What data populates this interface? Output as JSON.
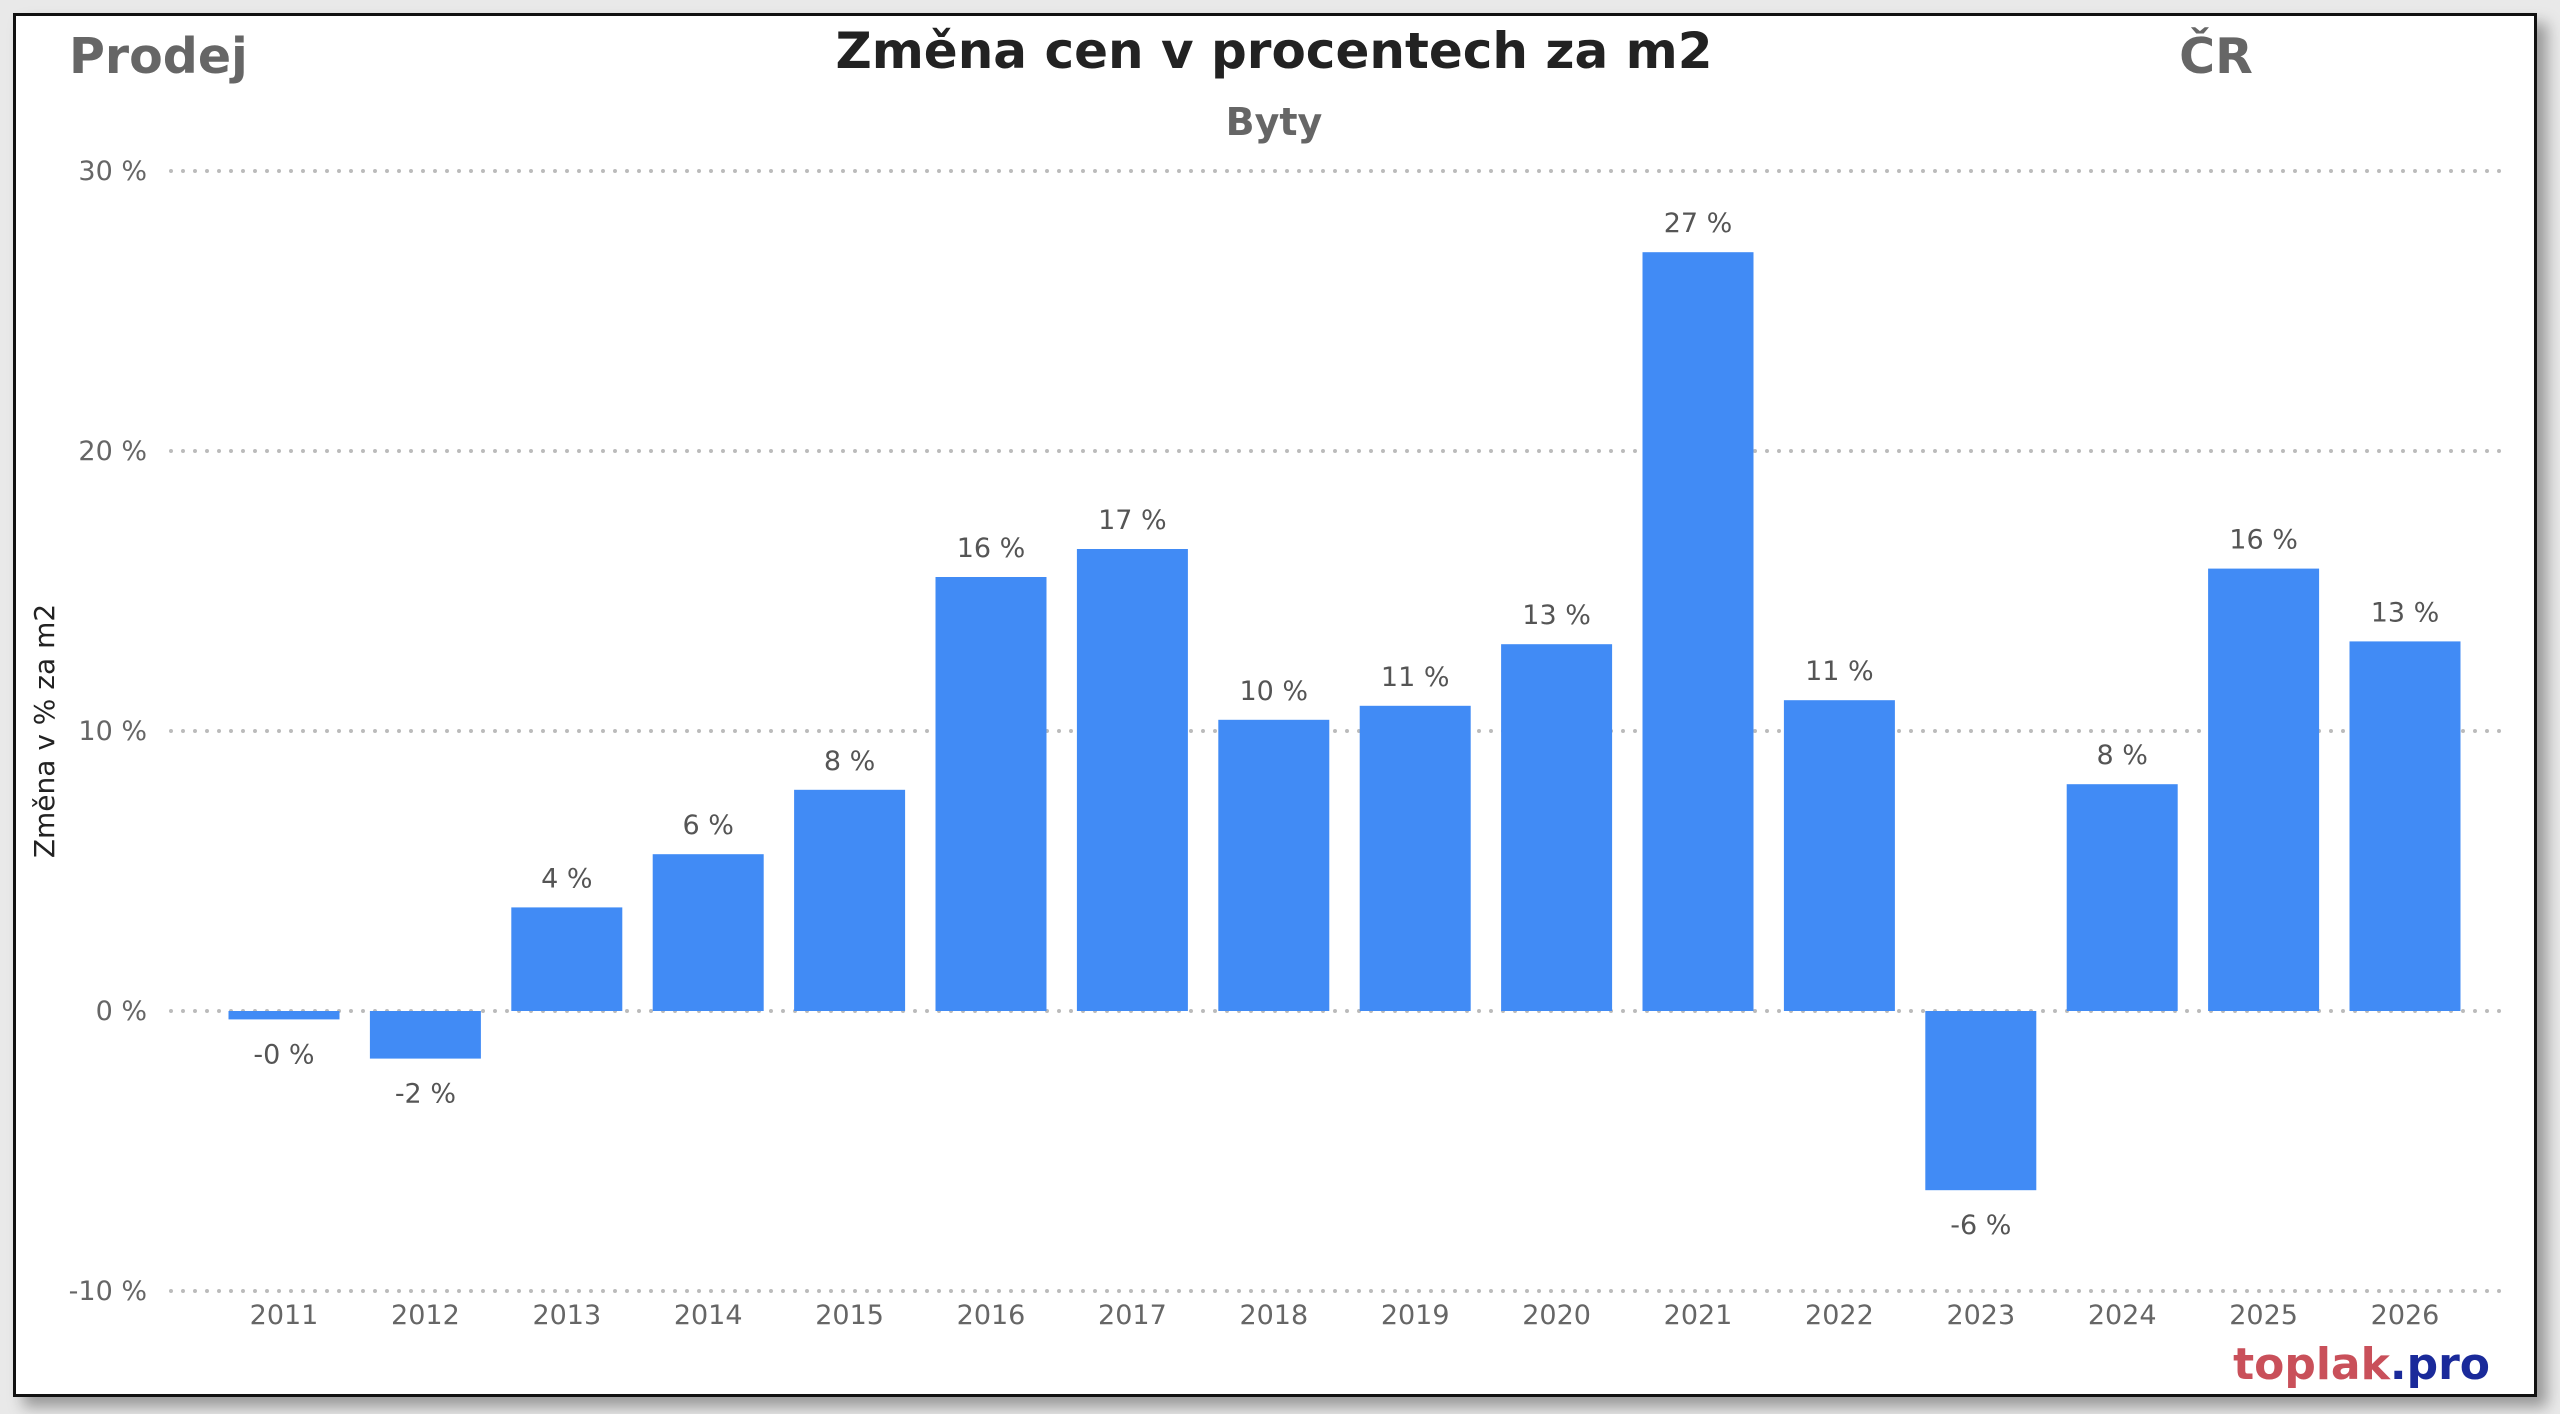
{
  "header": {
    "left": "Prodej",
    "right": "ČR"
  },
  "chart_data": {
    "type": "bar",
    "title": "Změna cen v procentech za m2",
    "subtitle": "Byty",
    "xlabel": "",
    "ylabel": "Změna v % za m2",
    "ylim": [
      -10,
      30
    ],
    "yticks": [
      30,
      20,
      10,
      0,
      -10
    ],
    "ytick_labels": [
      "30 %",
      "20 %",
      "10 %",
      "0 %",
      "-10 %"
    ],
    "grid": true,
    "categories": [
      "2011",
      "2012",
      "2013",
      "2014",
      "2015",
      "2016",
      "2017",
      "2018",
      "2019",
      "2020",
      "2021",
      "2022",
      "2023",
      "2024",
      "2025",
      "2026"
    ],
    "values": [
      -0.3,
      -1.7,
      3.7,
      5.6,
      7.9,
      15.5,
      16.5,
      10.4,
      10.9,
      13.1,
      27.1,
      11.1,
      -6.4,
      8.1,
      15.8,
      13.2
    ],
    "data_labels": [
      "-0 %",
      "-2 %",
      "4 %",
      "6 %",
      "8 %",
      "16 %",
      "17 %",
      "10 %",
      "11 %",
      "13 %",
      "27 %",
      "11 %",
      "-6 %",
      "8 %",
      "16 %",
      "13 %"
    ],
    "bar_color": "#418BF5"
  },
  "watermark": {
    "part1": "toplak",
    "part2": ".pro",
    "color1": "#C9505A",
    "color2": "#1A2A9A"
  }
}
